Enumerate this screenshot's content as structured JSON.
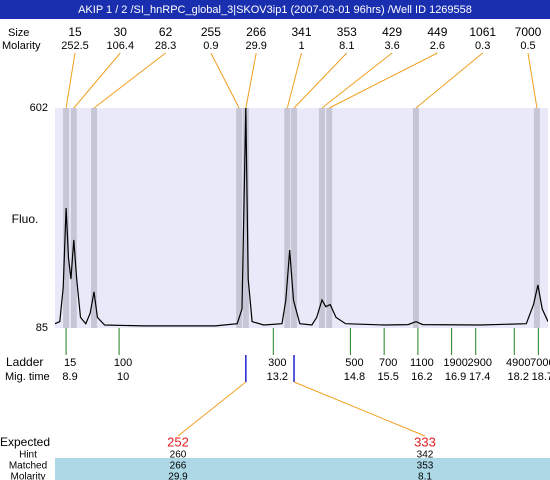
{
  "chart_data": {
    "type": "line",
    "title": "AKIP 1 / 2 /SI_hnRPC_global_3|SKOV3ip1 (2007-03-01 96hrs) /Well ID 1269558",
    "y_label": "Fluo.",
    "ylim": [
      85,
      602
    ],
    "yticks": [
      85,
      602
    ],
    "xlim": [
      8.67,
      18.9
    ],
    "trace": {
      "color": "#000000",
      "x": [
        8.67,
        8.77,
        8.84,
        8.9,
        8.95,
        9.0,
        9.06,
        9.12,
        9.2,
        9.31,
        9.4,
        9.48,
        9.55,
        9.7,
        10.5,
        12.0,
        12.45,
        12.55,
        12.63,
        12.68,
        12.76,
        13.0,
        13.38,
        13.46,
        13.54,
        13.62,
        13.75,
        14.0,
        14.1,
        14.21,
        14.29,
        14.38,
        14.5,
        14.7,
        15.5,
        16.0,
        16.16,
        16.3,
        17.5,
        18.45,
        18.6,
        18.69,
        18.78,
        18.9
      ],
      "values": [
        95,
        100,
        180,
        367,
        250,
        200,
        292,
        200,
        110,
        95,
        120,
        170,
        110,
        92,
        90,
        90,
        95,
        130,
        602,
        200,
        100,
        92,
        95,
        150,
        268,
        150,
        95,
        92,
        110,
        151,
        135,
        140,
        110,
        95,
        92,
        93,
        100,
        93,
        92,
        95,
        140,
        186,
        130,
        100
      ]
    },
    "peaks": {
      "row_labels": [
        "Size",
        "Molarity"
      ],
      "size": [
        15,
        30,
        62,
        255,
        266,
        341,
        353,
        429,
        449,
        1061,
        7000
      ],
      "molarity": [
        252.5,
        106.4,
        28.3,
        0.9,
        29.9,
        1,
        8.1,
        3.6,
        2.6,
        0.3,
        0.5
      ],
      "x": [
        8.9,
        9.06,
        9.48,
        12.49,
        12.63,
        13.49,
        13.63,
        14.21,
        14.36,
        16.16,
        18.67
      ]
    },
    "ladder": {
      "row_labels": [
        "Ladder",
        "Mig. time"
      ],
      "size": [
        15,
        100,
        300,
        500,
        700,
        1100,
        1900,
        2900,
        4900,
        7000
      ],
      "x": [
        8.9,
        10,
        13.2,
        14.8,
        15.5,
        16.2,
        16.9,
        17.4,
        18.2,
        18.7
      ]
    },
    "expected": {
      "row_labels": [
        "Expected",
        "Hint",
        "Matched",
        "Molarity"
      ],
      "expected": [
        252,
        333
      ],
      "hint": [
        260,
        342
      ],
      "matched": [
        266,
        353
      ],
      "molarity": [
        29.9,
        8.1
      ]
    }
  }
}
